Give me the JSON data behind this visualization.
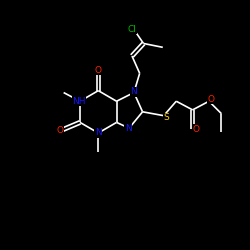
{
  "background_color": "#000000",
  "atom_colors": {
    "N": "#1515FF",
    "O": "#FF2200",
    "S": "#FFD700",
    "Cl": "#00BB00"
  },
  "bond_color": "#FFFFFF",
  "figsize": [
    2.5,
    2.5
  ],
  "dpi": 100,
  "xlim": [
    0,
    10
  ],
  "ylim": [
    0,
    10
  ]
}
